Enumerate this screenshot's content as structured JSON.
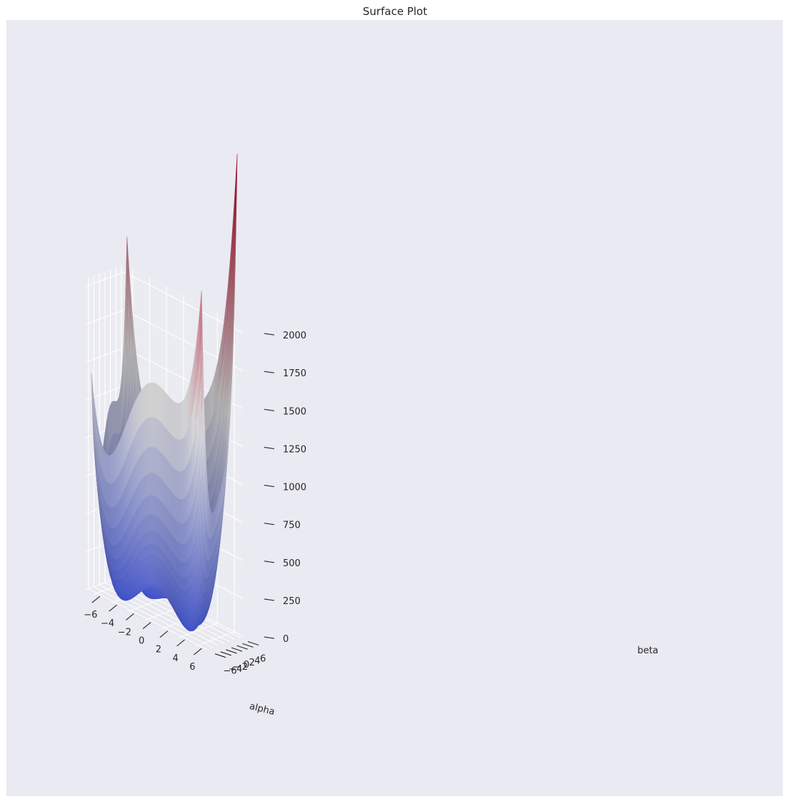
{
  "chart_data": {
    "type": "surface",
    "title": "Surface Plot",
    "xlabel": "alpha",
    "ylabel": "beta",
    "zlabel": "",
    "xlim": [
      -7,
      7
    ],
    "ylim": [
      -7,
      7
    ],
    "zlim": [
      0,
      2050
    ],
    "x_ticks": [
      -6,
      -4,
      -2,
      0,
      2,
      4,
      6
    ],
    "y_ticks": [
      -6,
      -4,
      -2,
      0,
      2,
      4,
      6
    ],
    "z_ticks": [
      0,
      250,
      500,
      750,
      1000,
      1250,
      1500,
      1750,
      2000
    ],
    "x_tick_labels": [
      "−6",
      "−4",
      "−2",
      "0",
      "2",
      "4",
      "6"
    ],
    "y_tick_labels": [
      "−6",
      "−4",
      "−2",
      "0",
      "2",
      "4",
      "6"
    ],
    "z_tick_labels": [
      "0",
      "250",
      "500",
      "750",
      "1000",
      "1250",
      "1500",
      "1750",
      "2000"
    ],
    "surface": {
      "function": "Himmelblau: (alpha^2 + beta - 11)^2 + (alpha + beta^2 - 7)^2",
      "alpha_range": [
        -6.5,
        6.5
      ],
      "beta_range": [
        -6.5,
        6.5
      ],
      "grid_points": 53,
      "colormap": "coolwarm"
    },
    "grid": true,
    "colors": {
      "pane_floor": "#e8e8ef",
      "pane_wall": "#ebebf2",
      "grid_line": "#ffffff",
      "text": "#262626",
      "colormap_low": "#3b4cc0",
      "colormap_mid": "#dddddd",
      "colormap_high": "#b40426"
    }
  }
}
